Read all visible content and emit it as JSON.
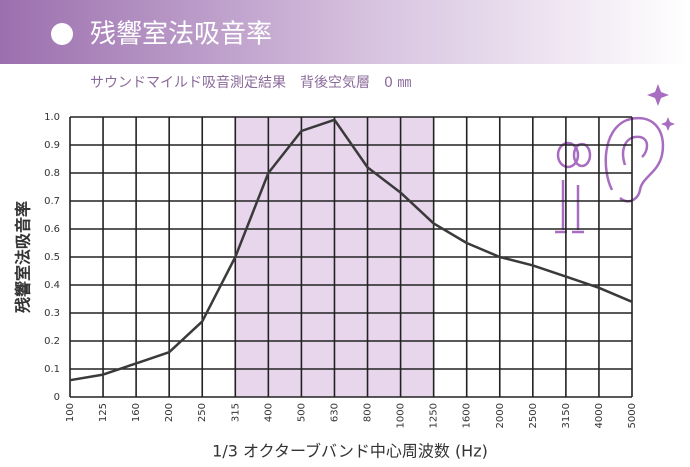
{
  "chart_data": {
    "type": "line",
    "title": "残響室法吸音率",
    "subtitle": "サウンドマイルド吸音測定結果　背後空気層　0 ㎜",
    "y_label": "残響室法吸音率",
    "x_label": "1/3 オクターブバンド中心周波数 (Hz)",
    "categories": [
      "100",
      "125",
      "160",
      "200",
      "250",
      "315",
      "400",
      "500",
      "630",
      "800",
      "1000",
      "1250",
      "1600",
      "2000",
      "2500",
      "3150",
      "4000",
      "5000"
    ],
    "values": [
      0.06,
      0.08,
      0.12,
      0.16,
      0.27,
      0.5,
      0.8,
      0.95,
      0.99,
      0.82,
      0.73,
      0.62,
      0.55,
      0.5,
      0.47,
      0.43,
      0.39,
      0.34
    ],
    "color": "#3a3a3a",
    "ylim": [
      0,
      1
    ],
    "yticks": [
      0,
      0.1,
      0.2,
      0.3,
      0.4,
      0.5,
      0.6,
      0.7,
      0.8,
      0.9,
      {
        "value": 1,
        "label": "1.0"
      }
    ],
    "grid": true,
    "highlight": {
      "from": "315",
      "to": "1250",
      "color": "#e8d6ec"
    }
  }
}
